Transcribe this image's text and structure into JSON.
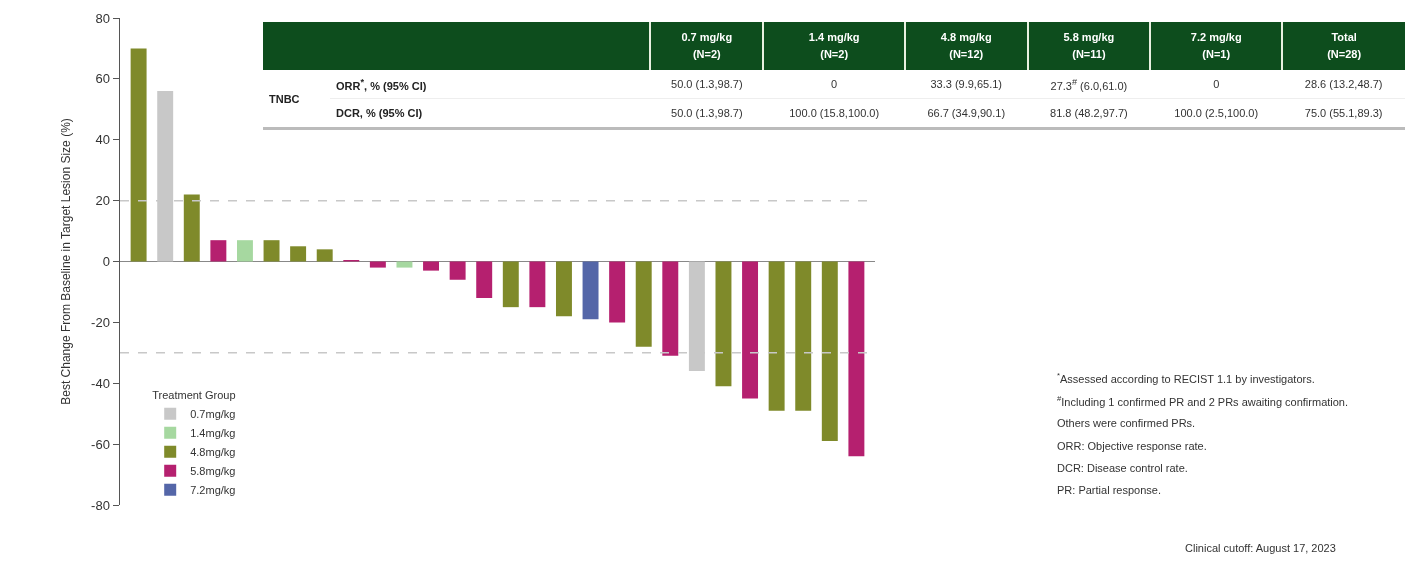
{
  "chart_data": [
    {
      "type": "bar",
      "ylabel": "Best Change From Baseline in Target Lesion Size (%)",
      "categories": [
        null,
        null,
        null,
        null,
        null,
        null,
        null,
        null,
        null,
        null,
        null,
        null,
        null,
        null,
        null,
        null,
        null,
        null,
        null,
        null,
        null,
        null,
        null,
        null,
        null,
        null,
        null,
        null
      ],
      "series": [
        {
          "name": "0.7mg/kg",
          "color": "#c8c8c8",
          "values": [
            null,
            56,
            null,
            null,
            null,
            null,
            null,
            null,
            null,
            null,
            null,
            null,
            null,
            null,
            null,
            null,
            null,
            null,
            null,
            null,
            null,
            -36,
            null,
            null,
            null,
            null,
            null,
            null
          ]
        },
        {
          "name": "1.4mg/kg",
          "color": "#a6d8a0",
          "values": [
            null,
            null,
            null,
            null,
            7,
            null,
            null,
            null,
            null,
            null,
            -2,
            null,
            null,
            null,
            null,
            null,
            null,
            null,
            null,
            null,
            null,
            null,
            null,
            null,
            null,
            null,
            null,
            null
          ]
        },
        {
          "name": "4.8mg/kg",
          "color": "#7f8a2a",
          "values": [
            70,
            null,
            22,
            null,
            null,
            7,
            5,
            4,
            null,
            null,
            null,
            null,
            null,
            null,
            -15,
            null,
            -18,
            null,
            null,
            -28,
            null,
            null,
            -41,
            null,
            -49,
            -49,
            -59,
            null
          ]
        },
        {
          "name": "5.8mg/kg",
          "color": "#b5206f",
          "values": [
            null,
            null,
            null,
            7,
            null,
            null,
            null,
            null,
            0.5,
            -2,
            null,
            -3,
            -6,
            -12,
            null,
            -15,
            null,
            null,
            -20,
            null,
            -31,
            null,
            null,
            -45,
            null,
            null,
            null,
            -64
          ]
        },
        {
          "name": "7.2mg/kg",
          "color": "#5466a8",
          "values": [
            null,
            null,
            null,
            null,
            null,
            null,
            null,
            null,
            null,
            null,
            null,
            null,
            null,
            null,
            null,
            null,
            null,
            -19,
            null,
            null,
            null,
            null,
            null,
            null,
            null,
            null,
            null,
            null
          ]
        }
      ],
      "ylim": [
        -80,
        80
      ],
      "yticks": [
        -80,
        -60,
        -40,
        -20,
        0,
        20,
        40,
        60,
        80
      ],
      "grid": false,
      "legend": "bottom left",
      "legend_title": "Treatment Group",
      "ref_lines": [
        {
          "axis": "y",
          "value": 20,
          "color": "#c8c8c8",
          "line_style": "dashed"
        },
        {
          "axis": "y",
          "value": -30,
          "color": "#c8c8c8",
          "line_style": "dashed"
        }
      ],
      "annotations": [
        "$^{*}$Assessed according to RECIST 1.1 by investigators.",
        "$^{#}$Including 1 confirmed PR and 2 PRs awaiting confirmation.",
        "Others were confirmed PRs.",
        "ORR: Objective response rate.",
        "DCR: Disease control rate.",
        "PR: Partial response.",
        "Clinical cutoff: August 17, 2023"
      ]
    },
    {
      "type": "other",
      "categories": [
        "0.7 mg/kg\n(N=2)",
        "1.4 mg/kg\n(N=2)",
        "4.8 mg/kg\n(N=12)",
        "5.8 mg/kg\n(N=11)",
        "7.2 mg/kg\n(N=1)",
        "Total\n(N=28)"
      ],
      "y_categories": [
        "ORR$^{*}$, % (95% CI)",
        "DCR, %  (95% CI)"
      ],
      "annotations": [
        "TNBC"
      ],
      "cell_labels": [
        [
          "50.0 (1.3,98.7)",
          "0",
          "33.3 (9.9,65.1)",
          "27.3$^{#}$ (6.0,61.0)",
          "0",
          "28.6 (13.2,48.7)"
        ],
        [
          "50.0 (1.3,98.7)",
          "100.0 (15.8,100.0)",
          "66.7 (34.9,90.1)",
          "81.8 (48.2,97.7)",
          "100.0 (2.5,100.0)",
          "75.0 (55.1,89.3)"
        ]
      ]
    }
  ]
}
